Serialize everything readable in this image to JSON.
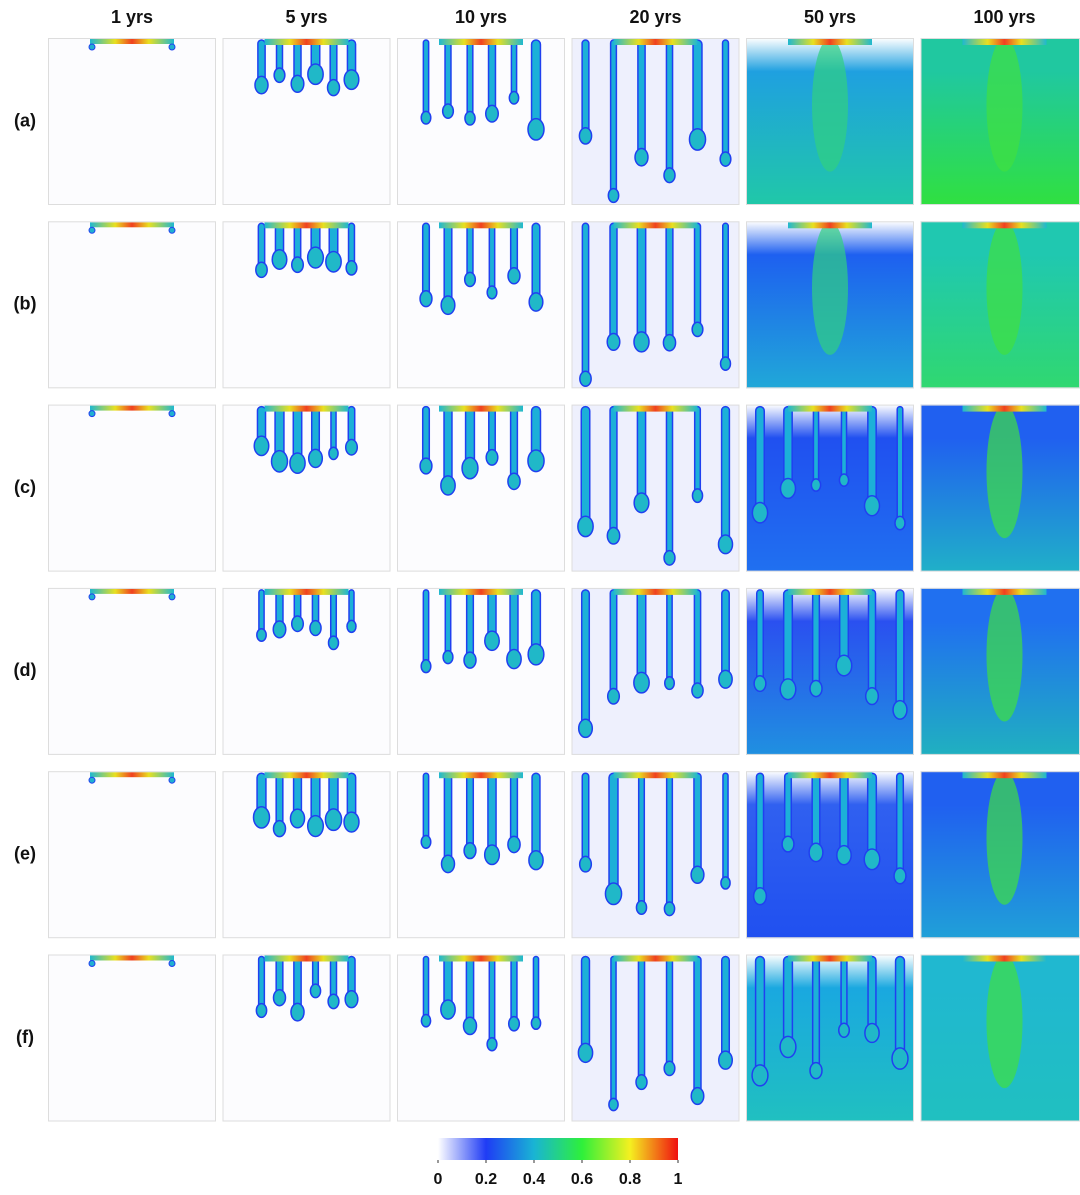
{
  "columns": [
    "1 yrs",
    "5 yrs",
    "10 yrs",
    "20 yrs",
    "50 yrs",
    "100 yrs"
  ],
  "rows": [
    "(a)",
    "(b)",
    "(c)",
    "(d)",
    "(e)",
    "(f)"
  ],
  "colorbar": {
    "ticks": [
      0,
      0.2,
      0.4,
      0.6,
      0.8,
      1
    ]
  }
}
